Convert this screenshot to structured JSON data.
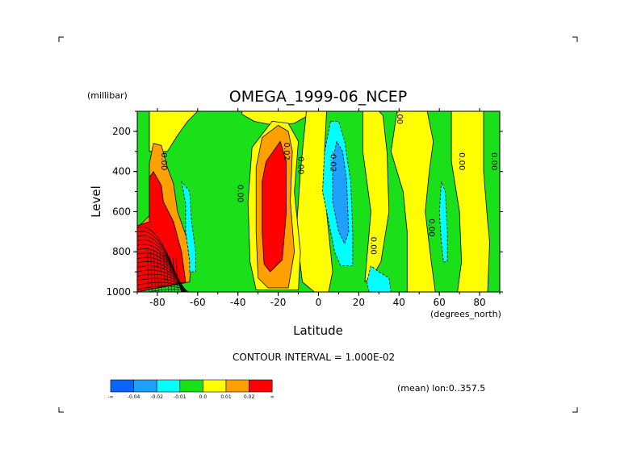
{
  "chart_data": {
    "type": "heatmap",
    "title": "OMEGA_1999-06_NCEP",
    "xlabel": "Latitude",
    "xunits": "(degrees_north)",
    "ylabel": "Level",
    "yunits": "(millibar)",
    "xlim": [
      -90,
      90
    ],
    "ylim": [
      1000,
      100
    ],
    "xticks": [
      -80,
      -60,
      -40,
      -20,
      0,
      20,
      40,
      60,
      80
    ],
    "xtick_labels": [
      "-80",
      "-60",
      "-40",
      "-20",
      "0",
      "20",
      "40",
      "60",
      "80"
    ],
    "yticks": [
      200,
      400,
      600,
      800,
      1000
    ],
    "ytick_labels": [
      "200",
      "400",
      "600",
      "800",
      "1000"
    ],
    "contour_interval_text": "CONTOUR INTERVAL = 1.000E-02",
    "mean_text": "(mean) lon:0..357.5",
    "colorbar": {
      "colors": [
        "#0a64ff",
        "#1ea0ff",
        "#00ffff",
        "#19e019",
        "#ffff00",
        "#ffa000",
        "#ff0000"
      ],
      "labels": [
        "-∞",
        "-0.04",
        "-0.02",
        "-0.01",
        "0.0",
        "0.01",
        "0.02",
        "∞"
      ]
    },
    "contour_labels": [
      {
        "text": "0.00",
        "lat": -78,
        "p": 350
      },
      {
        "text": "0.00",
        "lat": -40,
        "p": 510
      },
      {
        "text": "0.02",
        "lat": -17,
        "p": 300
      },
      {
        "text": "0.00",
        "lat": -10,
        "p": 370
      },
      {
        "text": "-0.02",
        "lat": 6,
        "p": 350
      },
      {
        "text": "0.00",
        "lat": 39,
        "p": 120
      },
      {
        "text": "0.00",
        "lat": 26,
        "p": 770
      },
      {
        "text": "0.00",
        "lat": 55,
        "p": 680
      },
      {
        "text": "0.00",
        "lat": 70,
        "p": 350
      },
      {
        "text": "0.00",
        "lat": 86,
        "p": 350
      }
    ],
    "regions": [
      {
        "level": "0.00..0.01",
        "color": "#ffff00",
        "polygon": [
          [
            -84,
            100
          ],
          [
            -84,
            300
          ],
          [
            -75,
            300
          ],
          [
            -70,
            220
          ],
          [
            -65,
            150
          ],
          [
            -60,
            100
          ]
        ]
      },
      {
        "level": "0.00..0.01",
        "color": "#ffff00",
        "polygon": [
          [
            -38,
            100
          ],
          [
            -38,
            115
          ],
          [
            -32,
            150
          ],
          [
            -22,
            170
          ],
          [
            -12,
            160
          ],
          [
            -5,
            120
          ],
          [
            -5,
            100
          ]
        ]
      },
      {
        "level": "0.00..0.01",
        "color": "#ffff00",
        "polygon": [
          [
            -6,
            100
          ],
          [
            -9,
            400
          ],
          [
            -11,
            700
          ],
          [
            -8,
            950
          ],
          [
            -2,
            1000
          ],
          [
            5,
            1000
          ],
          [
            7,
            900
          ],
          [
            4,
            600
          ],
          [
            3,
            300
          ],
          [
            4,
            100
          ]
        ]
      },
      {
        "level": "0.00..0.01",
        "color": "#ffff00",
        "polygon": [
          [
            -23,
            150
          ],
          [
            -33,
            280
          ],
          [
            -35,
            550
          ],
          [
            -34,
            850
          ],
          [
            -31,
            990
          ],
          [
            -10,
            990
          ],
          [
            -9,
            800
          ],
          [
            -12,
            500
          ],
          [
            -10,
            250
          ],
          [
            -15,
            160
          ]
        ]
      },
      {
        "level": "0.00..0.01",
        "color": "#ffff00",
        "polygon": [
          [
            22,
            100
          ],
          [
            22,
            300
          ],
          [
            26,
            600
          ],
          [
            23,
            950
          ],
          [
            27,
            920
          ],
          [
            31,
            850
          ],
          [
            35,
            600
          ],
          [
            34,
            300
          ],
          [
            32,
            120
          ],
          [
            30,
            100
          ]
        ]
      },
      {
        "level": "0.00..0.01",
        "color": "#ffff00",
        "polygon": [
          [
            39,
            100
          ],
          [
            36,
            300
          ],
          [
            42,
            500
          ],
          [
            44,
            700
          ],
          [
            44,
            1000
          ],
          [
            58,
            1000
          ],
          [
            56,
            850
          ],
          [
            53,
            600
          ],
          [
            55,
            400
          ],
          [
            57,
            250
          ],
          [
            54,
            100
          ]
        ]
      },
      {
        "level": "0.00..0.01",
        "color": "#ffff00",
        "polygon": [
          [
            66,
            100
          ],
          [
            66,
            350
          ],
          [
            70,
            600
          ],
          [
            71,
            850
          ],
          [
            69,
            1000
          ],
          [
            84,
            1000
          ],
          [
            85,
            750
          ],
          [
            84,
            650
          ],
          [
            82,
            400
          ],
          [
            82,
            100
          ]
        ]
      },
      {
        "level": "0.01..0.02",
        "color": "#ffa000",
        "polygon": [
          [
            -82,
            260
          ],
          [
            -78,
            270
          ],
          [
            -75,
            380
          ],
          [
            -72,
            460
          ],
          [
            -70,
            600
          ],
          [
            -63,
            800
          ],
          [
            -64,
            950
          ],
          [
            -90,
            1000
          ],
          [
            -90,
            680
          ],
          [
            -84,
            620
          ],
          [
            -84,
            360
          ]
        ]
      },
      {
        "level": "0.01..0.02",
        "color": "#ffa000",
        "polygon": [
          [
            -20,
            170
          ],
          [
            -28,
            230
          ],
          [
            -31,
            380
          ],
          [
            -31,
            700
          ],
          [
            -30,
            930
          ],
          [
            -25,
            980
          ],
          [
            -15,
            980
          ],
          [
            -12,
            800
          ],
          [
            -14,
            550
          ],
          [
            -13,
            300
          ],
          [
            -15,
            200
          ]
        ]
      },
      {
        "level": ">0.02",
        "color": "#ff0000",
        "polygon": [
          [
            -82,
            400
          ],
          [
            -78,
            470
          ],
          [
            -77,
            550
          ],
          [
            -72,
            650
          ],
          [
            -68,
            800
          ],
          [
            -66,
            950
          ],
          [
            -90,
            1000
          ],
          [
            -90,
            670
          ],
          [
            -84,
            650
          ],
          [
            -84,
            430
          ]
        ]
      },
      {
        "level": ">0.02",
        "color": "#ff0000",
        "polygon": [
          [
            -19,
            250
          ],
          [
            -26,
            350
          ],
          [
            -28,
            450
          ],
          [
            -28,
            700
          ],
          [
            -27,
            860
          ],
          [
            -24,
            900
          ],
          [
            -18,
            840
          ],
          [
            -16,
            600
          ],
          [
            -16,
            350
          ]
        ]
      },
      {
        "level": "-0.02..-0.01",
        "color": "#00ffff",
        "polygon": [
          [
            -68,
            450
          ],
          [
            -66,
            560
          ],
          [
            -66,
            700
          ],
          [
            -64,
            850
          ],
          [
            -64,
            900
          ],
          [
            -61,
            900
          ],
          [
            -61,
            800
          ],
          [
            -63,
            650
          ],
          [
            -64,
            500
          ]
        ]
      },
      {
        "level": "-0.02..-0.01",
        "color": "#00ffff",
        "polygon": [
          [
            6,
            150
          ],
          [
            3,
            300
          ],
          [
            2,
            500
          ],
          [
            5,
            650
          ],
          [
            8,
            800
          ],
          [
            11,
            870
          ],
          [
            17,
            870
          ],
          [
            17,
            700
          ],
          [
            16,
            450
          ],
          [
            13,
            250
          ],
          [
            10,
            150
          ]
        ]
      },
      {
        "level": "-0.02..-0.01",
        "color": "#00ffff",
        "polygon": [
          [
            26,
            870
          ],
          [
            24,
            950
          ],
          [
            25,
            1000
          ],
          [
            36,
            1000
          ],
          [
            35,
            930
          ],
          [
            30,
            900
          ]
        ]
      },
      {
        "level": "-0.02..-0.01",
        "color": "#00ffff",
        "polygon": [
          [
            61,
            450
          ],
          [
            60,
            600
          ],
          [
            61,
            750
          ],
          [
            62,
            850
          ],
          [
            64,
            850
          ],
          [
            64,
            700
          ],
          [
            63,
            500
          ]
        ]
      },
      {
        "level": "-0.04..-0.02",
        "color": "#1ea0ff",
        "polygon": [
          [
            9,
            250
          ],
          [
            7,
            350
          ],
          [
            7,
            550
          ],
          [
            10,
            700
          ],
          [
            13,
            760
          ],
          [
            15,
            700
          ],
          [
            14,
            450
          ],
          [
            12,
            300
          ]
        ]
      }
    ]
  }
}
